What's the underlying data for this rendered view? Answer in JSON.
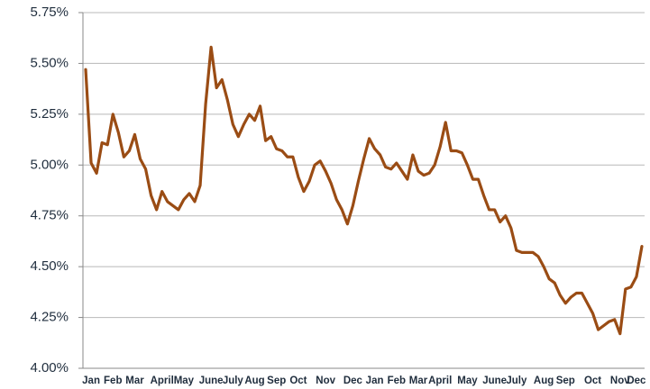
{
  "chart_data": {
    "type": "line",
    "categories": [
      null,
      "Jan",
      null,
      null,
      null,
      "Feb",
      null,
      null,
      null,
      "Mar",
      null,
      null,
      null,
      null,
      "April",
      null,
      null,
      null,
      "May",
      null,
      null,
      null,
      null,
      "June",
      null,
      null,
      null,
      "July",
      null,
      null,
      null,
      "Aug",
      null,
      null,
      null,
      "Sep",
      null,
      null,
      null,
      "Oct",
      null,
      null,
      null,
      null,
      "Nov",
      null,
      null,
      null,
      null,
      "Dec",
      null,
      null,
      null,
      "Jan",
      null,
      null,
      null,
      "Feb",
      null,
      null,
      null,
      "Mar",
      null,
      null,
      null,
      "April",
      null,
      null,
      null,
      null,
      "May",
      null,
      null,
      null,
      null,
      "June",
      null,
      null,
      null,
      "July",
      null,
      null,
      null,
      null,
      "Aug",
      null,
      null,
      null,
      "Sep",
      null,
      null,
      null,
      null,
      "Oct",
      null,
      null,
      null,
      null,
      "Nov",
      null,
      null,
      "Dec",
      null
    ],
    "values": [
      5.47,
      5.01,
      4.96,
      5.11,
      5.1,
      5.25,
      5.16,
      5.04,
      5.07,
      5.15,
      5.03,
      4.98,
      4.85,
      4.78,
      4.87,
      4.82,
      4.8,
      4.78,
      4.83,
      4.86,
      4.82,
      4.9,
      5.3,
      5.58,
      5.38,
      5.42,
      5.32,
      5.2,
      5.14,
      5.2,
      5.25,
      5.22,
      5.29,
      5.12,
      5.14,
      5.08,
      5.07,
      5.04,
      5.04,
      4.94,
      4.87,
      4.92,
      5.0,
      5.02,
      4.97,
      4.91,
      4.83,
      4.78,
      4.71,
      4.8,
      4.92,
      5.03,
      5.13,
      5.08,
      5.05,
      4.99,
      4.98,
      5.01,
      4.97,
      4.93,
      5.05,
      4.97,
      4.95,
      4.96,
      5.0,
      5.09,
      5.21,
      5.07,
      5.07,
      5.06,
      5.0,
      4.93,
      4.93,
      4.85,
      4.78,
      4.78,
      4.72,
      4.75,
      4.69,
      4.58,
      4.57,
      4.57,
      4.57,
      4.55,
      4.5,
      4.44,
      4.42,
      4.36,
      4.32,
      4.35,
      4.37,
      4.37,
      4.32,
      4.27,
      4.19,
      4.21,
      4.23,
      4.24,
      4.17,
      4.39,
      4.4,
      4.45,
      4.6
    ],
    "color": "#9a4c14",
    "ylim": [
      4.0,
      5.75
    ],
    "yticks": [
      {
        "value": 4.0,
        "label": "4.00%"
      },
      {
        "value": 4.25,
        "label": "4.25%"
      },
      {
        "value": 4.5,
        "label": "4.50%"
      },
      {
        "value": 4.75,
        "label": "4.75%"
      },
      {
        "value": 5.0,
        "label": "5.00%"
      },
      {
        "value": 5.25,
        "label": "5.25%"
      },
      {
        "value": 5.5,
        "label": "5.50%"
      },
      {
        "value": 5.75,
        "label": "5.75%"
      }
    ],
    "grid": true
  }
}
